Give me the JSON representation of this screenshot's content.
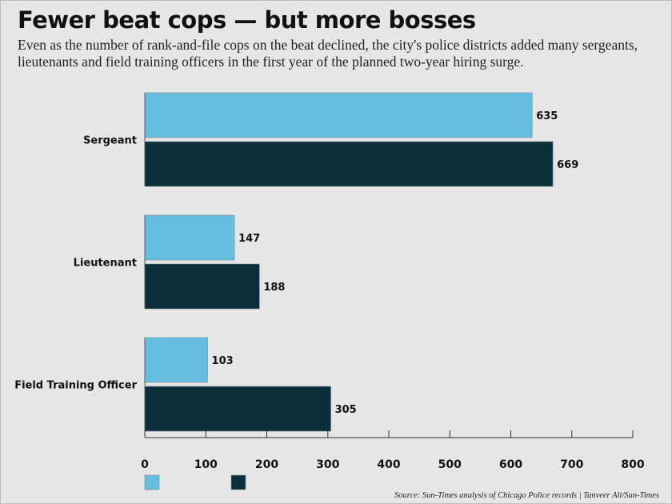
{
  "header": {
    "title": "Fewer beat cops — but more bosses",
    "subtitle": "Even as the number of rank-and-file cops on the beat declined, the city's police districts added many sergeants, lieutenants and field training officers in the first year of the planned two-year hiring surge."
  },
  "footer": {
    "source": "Source: Sun-Times analysis of Chicago Police records | Tanveer Ali/Sun-Times"
  },
  "chart_data": {
    "type": "bar",
    "orientation": "horizontal",
    "categories": [
      "Sergeant",
      "Lieutenant",
      "Field Training Officer"
    ],
    "series": [
      {
        "values": [
          635,
          147,
          103
        ],
        "color": "#66bde0"
      },
      {
        "values": [
          669,
          188,
          305
        ],
        "color": "#0b2e3b"
      }
    ],
    "xlim": [
      0,
      800
    ],
    "xticks": [
      0,
      100,
      200,
      300,
      400,
      500,
      600,
      700,
      800
    ],
    "data_labels": true,
    "grid": false,
    "legend_position": "bottom-left"
  }
}
